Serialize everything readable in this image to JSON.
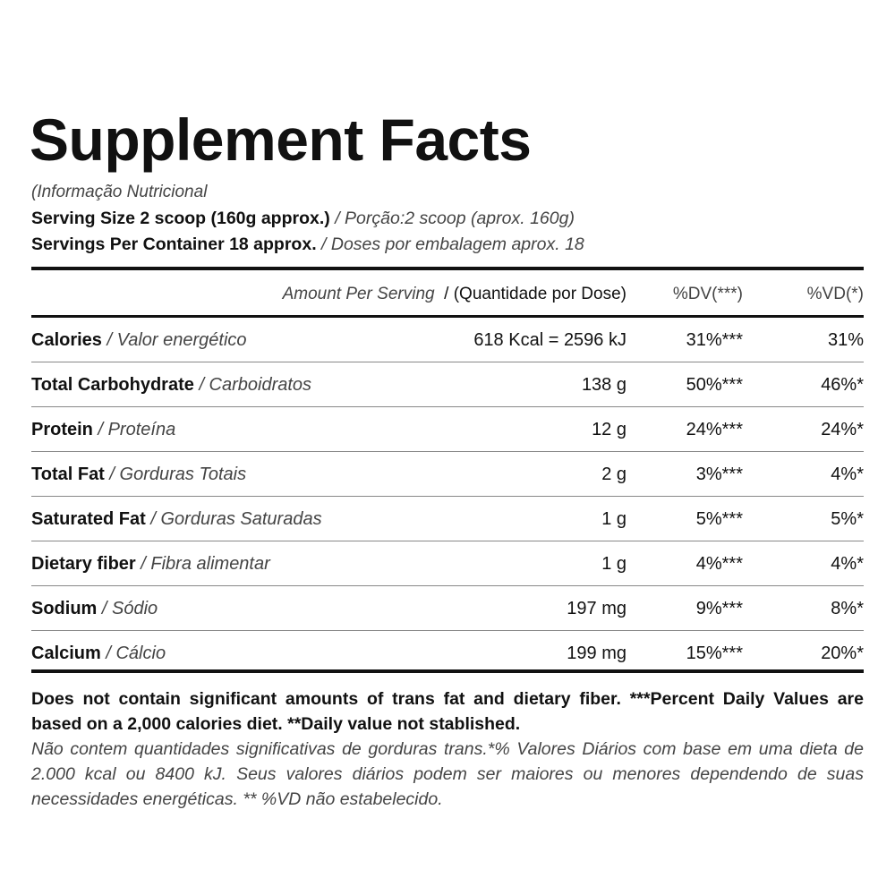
{
  "title": "Supplement Facts",
  "subtitle": "(Informação Nutricional",
  "serving": [
    {
      "label": "Serving Size 2 scoop (160g approx.)",
      "translation": "/ Porção:2 scoop (aprox. 160g)"
    },
    {
      "label": "Servings Per Container 18 approx.",
      "translation": "/ Doses por embalagem aprox. 18"
    }
  ],
  "table": {
    "header": [
      "Amount Per Serving",
      "/ (Quantidade por Dose)",
      "%DV(***)",
      "%VD(*)"
    ],
    "rows": [
      [
        "Calories",
        "/ Valor energético",
        "618 Kcal = 2596 kJ",
        "31%***",
        "31%"
      ],
      [
        "Total Carbohydrate",
        "/ Carboidratos",
        "138 g",
        "50%***",
        "46%*"
      ],
      [
        "Protein",
        "/ Proteína",
        "12 g",
        "24%***",
        "24%*"
      ],
      [
        "Total Fat",
        "/ Gorduras Totais",
        "2 g",
        "3%***",
        "4%*"
      ],
      [
        "Saturated Fat",
        "/ Gorduras Saturadas",
        "1 g",
        "5%***",
        "5%*"
      ],
      [
        "Dietary fiber",
        "/ Fibra alimentar",
        "1 g",
        "4%***",
        "4%*"
      ],
      [
        "Sodium",
        "/ Sódio",
        "197 mg",
        "9%***",
        "8%*"
      ],
      [
        "Calcium",
        "/ Cálcio",
        "199 mg",
        "15%***",
        "20%*"
      ]
    ]
  },
  "footer": {
    "bold": "Does not contain significant amounts of trans fat and dietary fiber. ***Percent Daily Values are based on a 2,000 calories diet. **Daily value not stablished.",
    "italic": "Não contem quantidades significativas de gorduras trans.*% Valores Diários com base em uma dieta de 2.000 kcal ou 8400 kJ. Seus valores diários podem ser maiores ou menores dependendo de suas necessidades energéticas. ** %VD não estabelecido."
  }
}
